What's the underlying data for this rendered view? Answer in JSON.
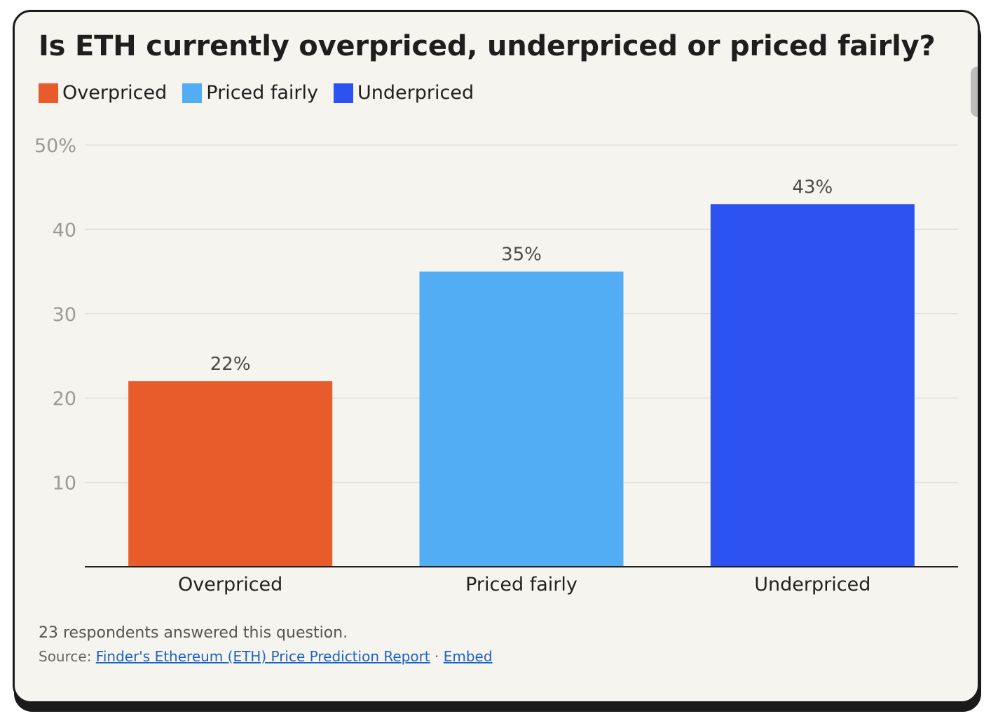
{
  "chart_data": {
    "type": "bar",
    "title": "Is ETH currently overpriced, underpriced or priced fairly?",
    "categories": [
      "Overpriced",
      "Priced fairly",
      "Underpriced"
    ],
    "values": [
      22,
      35,
      43
    ],
    "data_labels": [
      "22%",
      "35%",
      "43%"
    ],
    "colors": [
      "#e85b2a",
      "#52adf5",
      "#2d52f2"
    ],
    "ylim": [
      0,
      50
    ],
    "yticks": [
      10,
      20,
      30,
      40,
      50
    ],
    "ytick_labels": [
      "10",
      "20",
      "30",
      "40",
      "50%"
    ],
    "grid": true,
    "legend": {
      "position": "top-left",
      "entries": [
        "Overpriced",
        "Priced fairly",
        "Underpriced"
      ]
    }
  },
  "footer": {
    "note": "23 respondents answered this question.",
    "source_prefix": "Source: ",
    "source_link": "Finder's Ethereum (ETH) Price Prediction Report",
    "separator": " · ",
    "embed_link": "Embed"
  }
}
